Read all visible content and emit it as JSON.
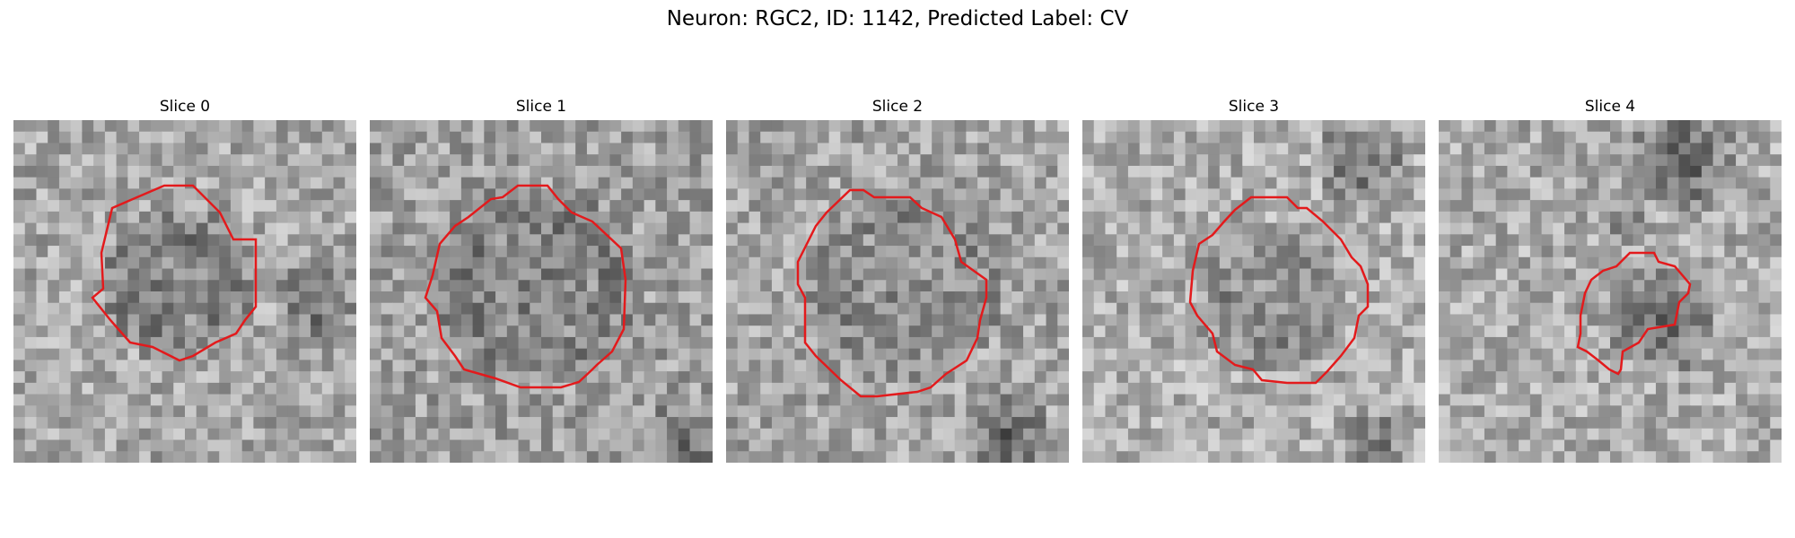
{
  "figure": {
    "suptitle": "Neuron: RGC2, ID: 1142, Predicted Label: CV",
    "panels": [
      {
        "title": "Slice 0",
        "seed": 11,
        "base": 168,
        "contour_color": "#e31a1c"
      },
      {
        "title": "Slice 1",
        "seed": 23,
        "base": 160,
        "contour_color": "#e31a1c"
      },
      {
        "title": "Slice 2",
        "seed": 37,
        "base": 165,
        "contour_color": "#e31a1c"
      },
      {
        "title": "Slice 3",
        "seed": 51,
        "base": 175,
        "contour_color": "#e31a1c"
      },
      {
        "title": "Slice 4",
        "seed": 79,
        "base": 172,
        "contour_color": "#e31a1c"
      }
    ]
  }
}
